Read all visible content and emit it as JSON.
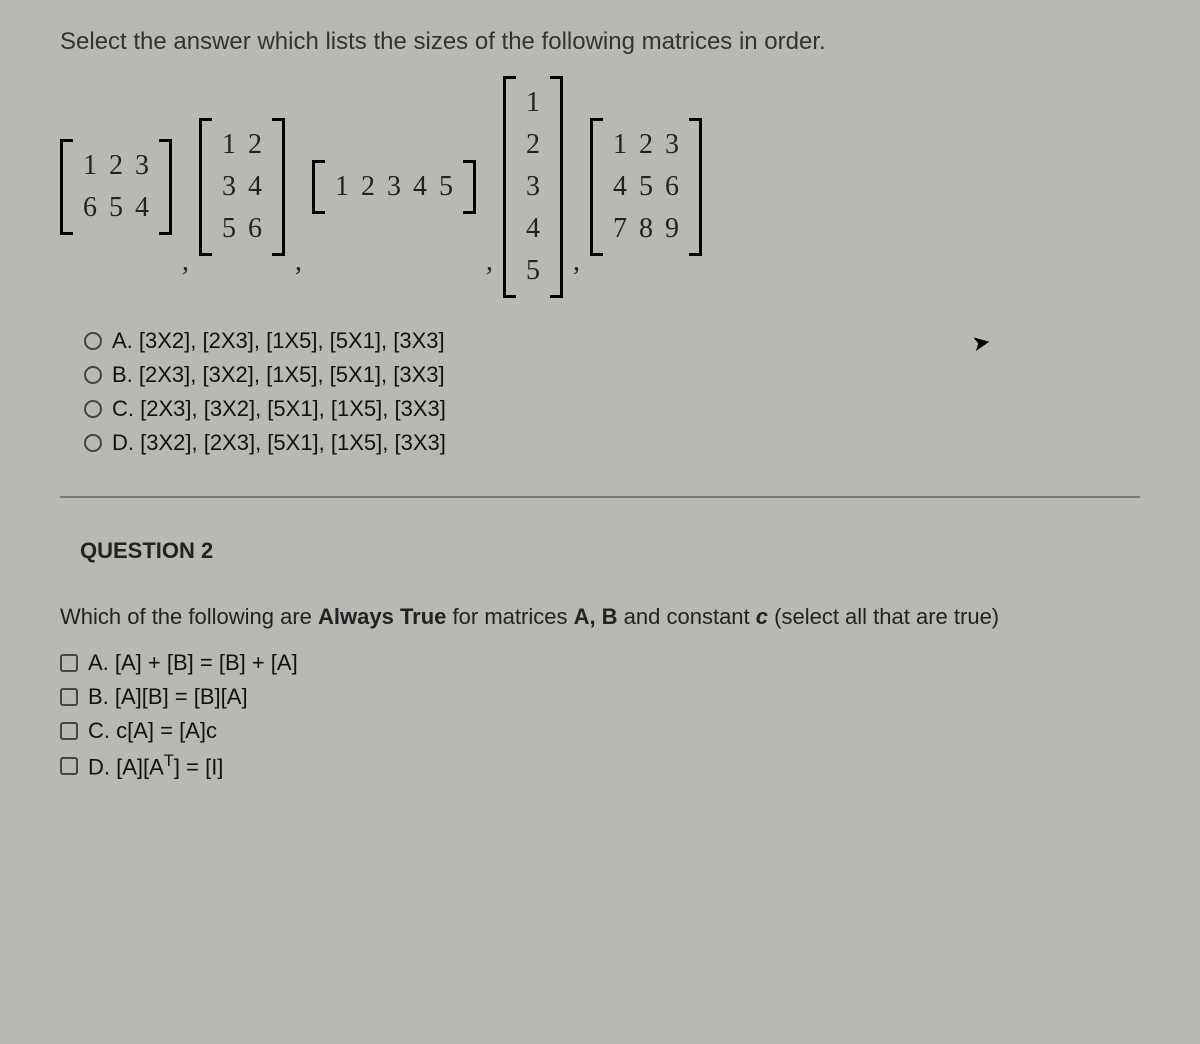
{
  "q1": {
    "prompt": "Select the answer which lists the sizes of the following matrices in order.",
    "matrices": {
      "m1": {
        "rows": [
          [
            "1",
            "2",
            "3"
          ],
          [
            "6",
            "5",
            "4"
          ]
        ]
      },
      "m2": {
        "rows": [
          [
            "1",
            "2"
          ],
          [
            "3",
            "4"
          ],
          [
            "5",
            "6"
          ]
        ]
      },
      "m3": {
        "rows": [
          [
            "1",
            "2",
            "3",
            "4",
            "5"
          ]
        ]
      },
      "m4": {
        "rows": [
          [
            "1"
          ],
          [
            "2"
          ],
          [
            "3"
          ],
          [
            "4"
          ],
          [
            "5"
          ]
        ]
      },
      "m5": {
        "rows": [
          [
            "1",
            "2",
            "3"
          ],
          [
            "4",
            "5",
            "6"
          ],
          [
            "7",
            "8",
            "9"
          ]
        ]
      }
    },
    "options": {
      "a": "A. [3X2], [2X3], [1X5], [5X1], [3X3]",
      "b": "B. [2X3], [3X2], [1X5], [5X1], [3X3]",
      "c": "C. [2X3], [3X2], [5X1], [1X5], [3X3]",
      "d": "D. [3X2], [2X3], [5X1], [1X5], [3X3]"
    }
  },
  "q2": {
    "heading": "QUESTION 2",
    "prompt_plain_pre": "Which of the following are ",
    "prompt_bold": "Always True",
    "prompt_plain_mid": " for matrices ",
    "prompt_bold2": "A, B",
    "prompt_plain_mid2": " and constant ",
    "prompt_const": "c",
    "prompt_tail": "  (select all that are true)",
    "options": {
      "a": "A. [A] + [B] = [B] + [A]",
      "b": "B. [A][B] = [B][A]",
      "c": "C. c[A] = [A]c",
      "d_pre": "D. [A][A",
      "d_sup": "T",
      "d_post": "] = [I]"
    }
  },
  "style": {
    "background_color": "#b8b8b4",
    "text_color": "#222222",
    "font_body": "Arial",
    "font_math": "Times New Roman",
    "prompt_fontsize": 24,
    "matrix_fontsize": 28,
    "option_fontsize": 22,
    "bracket_thickness": 3,
    "divider_color": "#777777"
  }
}
